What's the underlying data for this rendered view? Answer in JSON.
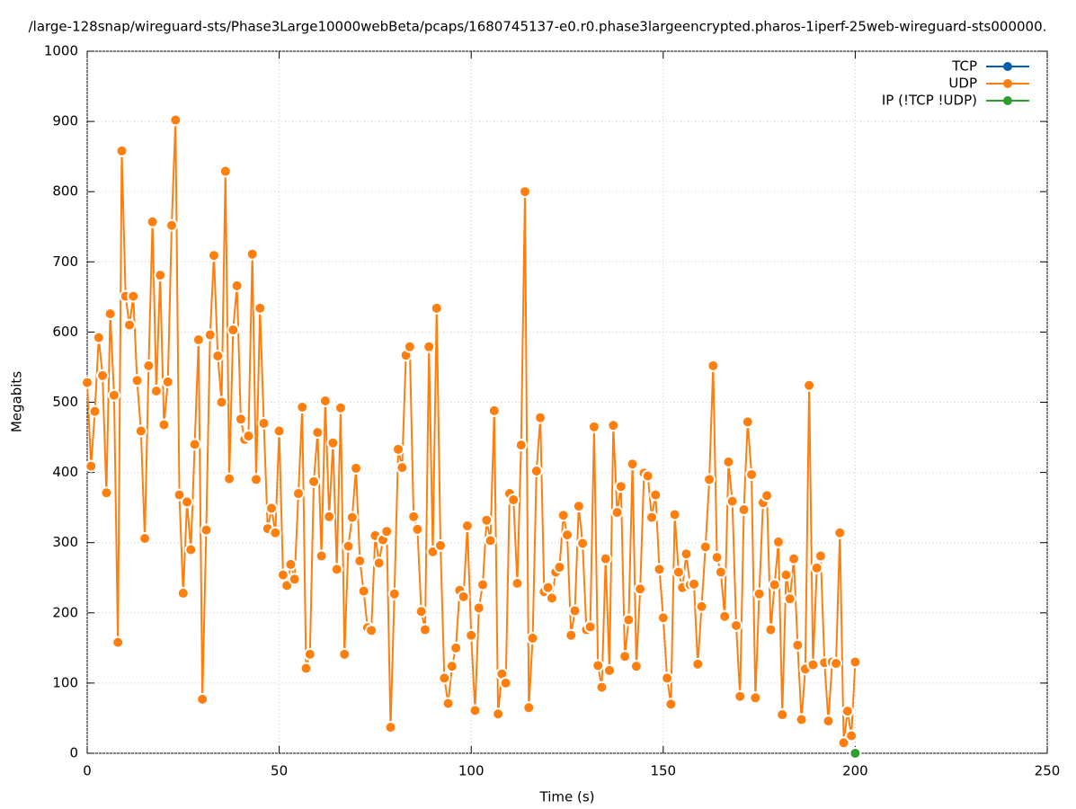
{
  "chart_data": {
    "type": "line",
    "title": "/large-128snap/wireguard-sts/Phase3Large10000webBeta/pcaps/1680745137-e0.r0.phase3largeencrypted.pharos-1iperf-25web-wireguard-sts000000.",
    "xlabel": "Time (s)",
    "ylabel": "Megabits",
    "xlim": [
      0,
      250
    ],
    "xticks": [
      0,
      50,
      100,
      150,
      200,
      250
    ],
    "ylim": [
      0,
      1000
    ],
    "yticks": [
      0,
      100,
      200,
      300,
      400,
      500,
      600,
      700,
      800,
      900,
      1000
    ],
    "grid": true,
    "legend": "top-right",
    "series": [
      {
        "name": "TCP",
        "color": "#0060ad",
        "x": [],
        "values": []
      },
      {
        "name": "UDP",
        "color": "#ff7f0e",
        "x": [
          0,
          1,
          2,
          3,
          4,
          5,
          6,
          7,
          8,
          9,
          10,
          11,
          12,
          13,
          14,
          15,
          16,
          17,
          18,
          19,
          20,
          21,
          22,
          23,
          24,
          25,
          26,
          27,
          28,
          29,
          30,
          31,
          32,
          33,
          34,
          35,
          36,
          37,
          38,
          39,
          40,
          41,
          42,
          43,
          44,
          45,
          46,
          47,
          48,
          49,
          50,
          51,
          52,
          53,
          54,
          55,
          56,
          57,
          58,
          59,
          60,
          61,
          62,
          63,
          64,
          65,
          66,
          67,
          68,
          69,
          70,
          71,
          72,
          73,
          74,
          75,
          76,
          77,
          78,
          79,
          80,
          81,
          82,
          83,
          84,
          85,
          86,
          87,
          88,
          89,
          90,
          91,
          92,
          93,
          94,
          95,
          96,
          97,
          98,
          99,
          100,
          101,
          102,
          103,
          104,
          105,
          106,
          107,
          108,
          109,
          110,
          111,
          112,
          113,
          114,
          115,
          116,
          117,
          118,
          119,
          120,
          121,
          122,
          123,
          124,
          125,
          126,
          127,
          128,
          129,
          130,
          131,
          132,
          133,
          134,
          135,
          136,
          137,
          138,
          139,
          140,
          141,
          142,
          143,
          144,
          145,
          146,
          147,
          148,
          149,
          150,
          151,
          152,
          153,
          154,
          155,
          156,
          157,
          158,
          159,
          160,
          161,
          162,
          163,
          164,
          165,
          166,
          167,
          168,
          169,
          170,
          171,
          172,
          173,
          174,
          175,
          176,
          177,
          178,
          179,
          180,
          181,
          182,
          183,
          184,
          185,
          186,
          187,
          188,
          189,
          190,
          191,
          192,
          193,
          194,
          195,
          196,
          197,
          198,
          199,
          200
        ],
        "values": [
          528,
          409,
          487,
          592,
          538,
          371,
          626,
          510,
          158,
          858,
          651,
          610,
          651,
          531,
          459,
          306,
          552,
          757,
          516,
          681,
          468,
          529,
          752,
          902,
          368,
          228,
          358,
          290,
          440,
          589,
          77,
          318,
          596,
          709,
          566,
          500,
          829,
          391,
          603,
          666,
          476,
          447,
          452,
          711,
          390,
          634,
          470,
          320,
          349,
          314,
          459,
          254,
          239,
          269,
          248,
          370,
          493,
          121,
          141,
          387,
          457,
          281,
          502,
          337,
          442,
          262,
          492,
          141,
          295,
          336,
          406,
          274,
          231,
          179,
          175,
          310,
          271,
          304,
          316,
          37,
          227,
          433,
          407,
          567,
          579,
          337,
          319,
          202,
          176,
          579,
          287,
          634,
          296,
          107,
          71,
          124,
          150,
          232,
          223,
          324,
          168,
          61,
          207,
          240,
          332,
          303,
          488,
          56,
          113,
          100,
          370,
          361,
          242,
          439,
          800,
          65,
          164,
          402,
          478,
          230,
          236,
          221,
          258,
          265,
          339,
          311,
          168,
          203,
          352,
          299,
          176,
          180,
          465,
          125,
          94,
          277,
          118,
          467,
          343,
          380,
          138,
          190,
          412,
          124,
          234,
          399,
          395,
          336,
          368,
          262,
          193,
          107,
          70,
          340,
          258,
          236,
          284,
          240,
          241,
          127,
          209,
          294,
          390,
          552,
          279,
          258,
          195,
          415,
          359,
          182,
          81,
          347,
          472,
          397,
          79,
          227,
          357,
          367,
          176,
          240,
          301,
          55,
          254,
          220,
          277,
          154,
          48,
          120,
          524,
          126,
          264,
          281,
          129,
          46,
          130,
          128,
          314,
          15,
          60,
          25,
          130
        ]
      },
      {
        "name": "IP (!TCP  !UDP)",
        "color": "#2ca02c",
        "x": [
          200
        ],
        "values": [
          0
        ]
      }
    ]
  }
}
